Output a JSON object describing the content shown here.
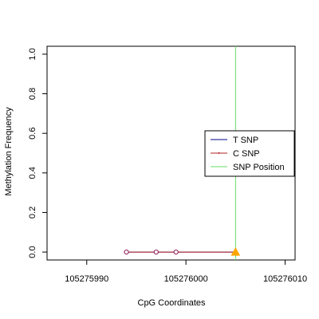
{
  "chart_data": {
    "type": "line",
    "title": "",
    "xlabel": "CpG Coordinates",
    "ylabel": "Methylation Frequency",
    "xlim": [
      105275986,
      105276011
    ],
    "ylim": [
      -0.04,
      1.04
    ],
    "x_ticks": [
      105275990,
      105276000,
      105276010
    ],
    "x_tick_labels": [
      "105275990",
      "105276000",
      "105276010"
    ],
    "y_ticks": [
      0.0,
      0.2,
      0.4,
      0.6,
      0.8,
      1.0
    ],
    "y_tick_labels": [
      "0.0",
      "0.2",
      "0.4",
      "0.6",
      "0.8",
      "1.0"
    ],
    "grid": false,
    "legend_position": "right",
    "series": [
      {
        "name": "T SNP",
        "color": "#00008B",
        "x": [
          105275994,
          105275997,
          105275999,
          105276005
        ],
        "y": [
          0,
          0,
          0,
          0
        ]
      },
      {
        "name": "C SNP",
        "color": "#B22222",
        "x": [
          105275994,
          105275997,
          105275999,
          105276005
        ],
        "y": [
          0,
          0,
          0,
          0
        ]
      }
    ],
    "cpg_points": {
      "color": "#8B1A5A",
      "x": [
        105275994,
        105275997,
        105275999
      ],
      "y": [
        0,
        0,
        0
      ]
    },
    "snp_position": {
      "name": "SNP Position",
      "color": "#66DD66",
      "x": 105276005,
      "marker_color": "#FFA500",
      "marker_y": 0
    },
    "legend": [
      {
        "label": "T SNP",
        "color": "#00008B"
      },
      {
        "label": "C SNP",
        "color": "#B22222"
      },
      {
        "label": "SNP Position",
        "color": "#66DD66"
      }
    ]
  }
}
